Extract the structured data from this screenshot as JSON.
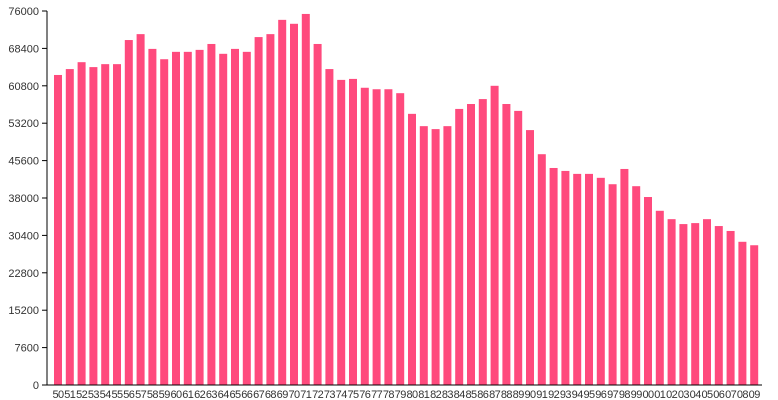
{
  "chart_data": {
    "type": "bar",
    "title": "",
    "xlabel": "",
    "ylabel": "",
    "ylim": [
      0,
      76000
    ],
    "yticks": [
      0,
      7600,
      15200,
      22800,
      30400,
      38000,
      45600,
      53200,
      60800,
      68400,
      76000
    ],
    "grid": false,
    "color": "#ff4a7d",
    "categories": [
      "50",
      "51",
      "52",
      "53",
      "54",
      "55",
      "56",
      "57",
      "58",
      "59",
      "60",
      "61",
      "62",
      "63",
      "64",
      "65",
      "66",
      "67",
      "68",
      "69",
      "70",
      "71",
      "72",
      "73",
      "74",
      "75",
      "76",
      "77",
      "78",
      "79",
      "80",
      "81",
      "82",
      "83",
      "84",
      "85",
      "86",
      "87",
      "88",
      "89",
      "90",
      "91",
      "92",
      "93",
      "94",
      "95",
      "96",
      "97",
      "98",
      "99",
      "00",
      "01",
      "02",
      "03",
      "04",
      "05",
      "06",
      "07",
      "08",
      "09"
    ],
    "values": [
      63000,
      64200,
      65600,
      64600,
      65200,
      65200,
      70100,
      71300,
      68300,
      66200,
      67700,
      67700,
      68100,
      69300,
      67300,
      68300,
      67700,
      70700,
      71300,
      74200,
      73400,
      75400,
      69300,
      64200,
      62000,
      62200,
      60400,
      60100,
      60100,
      59300,
      55100,
      52600,
      52000,
      52600,
      56100,
      57100,
      58100,
      60800,
      57100,
      55700,
      51800,
      46900,
      44100,
      43500,
      42900,
      42900,
      42100,
      40800,
      43900,
      40400,
      38200,
      35400,
      33700,
      32700,
      32900,
      33700,
      32300,
      31300,
      29100,
      28400
    ]
  }
}
